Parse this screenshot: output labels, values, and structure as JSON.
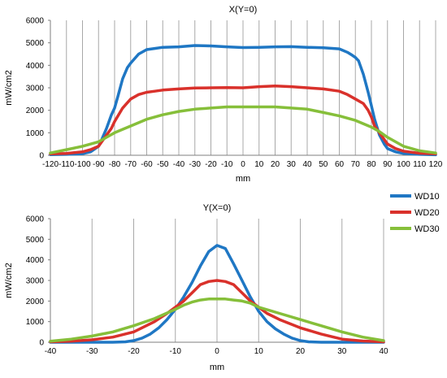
{
  "legend": {
    "placement": "right-middle",
    "entries": [
      "WD10",
      "WD20",
      "WD30"
    ]
  },
  "colors": {
    "WD10": "#1f77c4",
    "WD20": "#d9312b",
    "WD30": "#86bf3a",
    "grid": "#a8a8a8",
    "axis": "#7f7f7f"
  },
  "chart_data": [
    {
      "type": "line",
      "title": "X(Y=0)",
      "xlabel": "mm",
      "ylabel": "mW/cm2",
      "xlim": [
        -120,
        120
      ],
      "ylim": [
        0,
        6000
      ],
      "xticks": [
        -120,
        -110,
        -100,
        -90,
        -80,
        -70,
        -60,
        -50,
        -40,
        -30,
        -20,
        -10,
        0,
        10,
        20,
        30,
        40,
        50,
        60,
        70,
        80,
        90,
        100,
        110,
        120
      ],
      "yticks": [
        0,
        1000,
        2000,
        3000,
        4000,
        5000,
        6000
      ],
      "grid": "vertical",
      "series": [
        {
          "name": "WD10",
          "x": [
            -120,
            -110,
            -100,
            -95,
            -90,
            -88,
            -85,
            -82,
            -80,
            -78,
            -75,
            -72,
            -70,
            -65,
            -60,
            -55,
            -50,
            -40,
            -30,
            -20,
            -10,
            0,
            10,
            20,
            30,
            40,
            50,
            60,
            65,
            68,
            70,
            72,
            75,
            78,
            80,
            82,
            85,
            88,
            90,
            95,
            100,
            110,
            120
          ],
          "values": [
            30,
            40,
            70,
            150,
            400,
            700,
            1200,
            1800,
            2100,
            2600,
            3400,
            3900,
            4100,
            4500,
            4700,
            4750,
            4800,
            4820,
            4880,
            4860,
            4820,
            4790,
            4800,
            4820,
            4830,
            4800,
            4780,
            4730,
            4580,
            4450,
            4350,
            4200,
            3600,
            2800,
            2200,
            1600,
            900,
            500,
            300,
            150,
            80,
            40,
            20
          ]
        },
        {
          "name": "WD20",
          "x": [
            -120,
            -110,
            -100,
            -95,
            -90,
            -88,
            -85,
            -82,
            -80,
            -75,
            -70,
            -65,
            -60,
            -55,
            -50,
            -40,
            -30,
            -20,
            -10,
            0,
            10,
            20,
            30,
            40,
            50,
            60,
            65,
            70,
            75,
            78,
            80,
            82,
            85,
            88,
            90,
            95,
            100,
            110,
            120
          ],
          "values": [
            60,
            80,
            150,
            250,
            400,
            600,
            900,
            1200,
            1500,
            2100,
            2500,
            2700,
            2800,
            2850,
            2900,
            2950,
            2990,
            3000,
            3010,
            3000,
            3050,
            3080,
            3050,
            3000,
            2950,
            2850,
            2700,
            2500,
            2300,
            2000,
            1700,
            1300,
            1000,
            700,
            500,
            300,
            180,
            90,
            60
          ]
        },
        {
          "name": "WD30",
          "x": [
            -120,
            -110,
            -100,
            -90,
            -85,
            -80,
            -70,
            -60,
            -50,
            -40,
            -30,
            -20,
            -10,
            0,
            10,
            20,
            30,
            40,
            50,
            60,
            70,
            80,
            85,
            90,
            100,
            110,
            120
          ],
          "values": [
            100,
            250,
            400,
            600,
            800,
            1000,
            1300,
            1600,
            1800,
            1950,
            2050,
            2100,
            2150,
            2150,
            2150,
            2150,
            2100,
            2050,
            1900,
            1750,
            1550,
            1250,
            1050,
            800,
            400,
            200,
            100
          ]
        }
      ]
    },
    {
      "type": "line",
      "title": "Y(X=0)",
      "xlabel": "mm",
      "ylabel": "mW/cm2",
      "xlim": [
        -40,
        40
      ],
      "ylim": [
        0,
        6000
      ],
      "xticks": [
        -40,
        -30,
        -20,
        -10,
        0,
        10,
        20,
        30,
        40
      ],
      "yticks": [
        0,
        1000,
        2000,
        3000,
        4000,
        5000,
        6000
      ],
      "grid": "vertical",
      "series": [
        {
          "name": "WD10",
          "x": [
            -40,
            -30,
            -25,
            -22,
            -20,
            -18,
            -16,
            -14,
            -12,
            -10,
            -8,
            -6,
            -4,
            -2,
            0,
            2,
            4,
            6,
            8,
            10,
            12,
            14,
            16,
            18,
            20,
            22,
            25,
            30,
            40
          ],
          "values": [
            0,
            0,
            0,
            20,
            80,
            200,
            400,
            700,
            1100,
            1600,
            2200,
            2900,
            3700,
            4400,
            4700,
            4550,
            3800,
            3000,
            2200,
            1500,
            1000,
            650,
            400,
            200,
            80,
            20,
            0,
            0,
            0
          ]
        },
        {
          "name": "WD20",
          "x": [
            -40,
            -35,
            -30,
            -25,
            -20,
            -15,
            -12,
            -10,
            -8,
            -6,
            -4,
            -2,
            0,
            2,
            4,
            6,
            8,
            10,
            12,
            15,
            20,
            25,
            30,
            35,
            40
          ],
          "values": [
            20,
            50,
            120,
            250,
            500,
            1000,
            1400,
            1700,
            2000,
            2400,
            2800,
            2950,
            3000,
            2950,
            2800,
            2400,
            2000,
            1700,
            1400,
            1100,
            700,
            400,
            150,
            60,
            20
          ]
        },
        {
          "name": "WD30",
          "x": [
            -40,
            -35,
            -30,
            -25,
            -20,
            -15,
            -10,
            -8,
            -6,
            -4,
            -2,
            0,
            2,
            4,
            6,
            8,
            10,
            15,
            20,
            25,
            30,
            35,
            40
          ],
          "values": [
            50,
            150,
            300,
            500,
            800,
            1150,
            1600,
            1800,
            1950,
            2050,
            2100,
            2100,
            2100,
            2050,
            2000,
            1900,
            1700,
            1400,
            1100,
            800,
            500,
            250,
            80
          ]
        }
      ]
    }
  ]
}
